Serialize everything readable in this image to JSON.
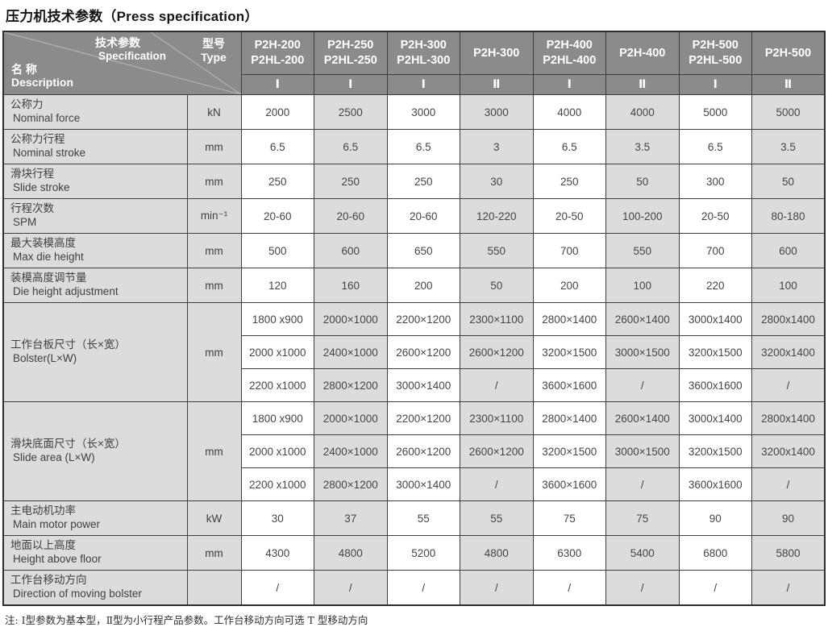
{
  "title": "压力机技术参数（Press specification）",
  "header": {
    "corner": {
      "spec_zh": "技术参数",
      "spec_en": "Specification",
      "type_zh": "型号",
      "type_en": "Type",
      "desc_zh": "名 称",
      "desc_en": "Description"
    },
    "models": [
      [
        "P2H-200",
        "P2HL-200"
      ],
      [
        "P2H-250",
        "P2HL-250"
      ],
      [
        "P2H-300",
        "P2HL-300"
      ],
      [
        "P2H-300"
      ],
      [
        "P2H-400",
        "P2HL-400"
      ],
      [
        "P2H-400"
      ],
      [
        "P2H-500",
        "P2HL-500"
      ],
      [
        "P2H-500"
      ]
    ],
    "types": [
      "Ⅰ",
      "Ⅰ",
      "Ⅰ",
      "Ⅱ",
      "Ⅰ",
      "Ⅱ",
      "Ⅰ",
      "Ⅱ"
    ]
  },
  "rows": [
    {
      "label_zh": "公称力",
      "label_en": "Nominal force",
      "unit": "kN",
      "values": [
        "2000",
        "2500",
        "3000",
        "3000",
        "4000",
        "4000",
        "5000",
        "5000"
      ]
    },
    {
      "label_zh": "公称力行程",
      "label_en": "Nominal stroke",
      "unit": "mm",
      "values": [
        "6.5",
        "6.5",
        "6.5",
        "3",
        "6.5",
        "3.5",
        "6.5",
        "3.5"
      ]
    },
    {
      "label_zh": "滑块行程",
      "label_en": "Slide stroke",
      "unit": "mm",
      "values": [
        "250",
        "250",
        "250",
        "30",
        "250",
        "50",
        "300",
        "50"
      ]
    },
    {
      "label_zh": "行程次数",
      "label_en": "SPM",
      "unit": "min⁻¹",
      "values": [
        "20-60",
        "20-60",
        "20-60",
        "120-220",
        "20-50",
        "100-200",
        "20-50",
        "80-180"
      ]
    },
    {
      "label_zh": "最大装模高度",
      "label_en": "Max die height",
      "unit": "mm",
      "values": [
        "500",
        "600",
        "650",
        "550",
        "700",
        "550",
        "700",
        "600"
      ]
    },
    {
      "label_zh": "装模高度调节量",
      "label_en": "Die height adjustment",
      "unit": "mm",
      "values": [
        "120",
        "160",
        "200",
        "50",
        "200",
        "100",
        "220",
        "100"
      ]
    },
    {
      "label_zh": "工作台板尺寸（长×宽）",
      "label_en": "Bolster(L×W)",
      "unit": "mm",
      "multi": [
        [
          "1800 x900",
          "2000×1000",
          "2200×1200",
          "2300×1100",
          "2800×1400",
          "2600×1400",
          "3000x1400",
          "2800x1400"
        ],
        [
          "2000 x1000",
          "2400×1000",
          "2600×1200",
          "2600×1200",
          "3200×1500",
          "3000×1500",
          "3200x1500",
          "3200x1400"
        ],
        [
          "2200 x1000",
          "2800×1200",
          "3000×1400",
          "/",
          "3600×1600",
          "/",
          "3600x1600",
          "/"
        ]
      ]
    },
    {
      "label_zh": "滑块底面尺寸（长×宽）",
      "label_en": "Slide area (L×W)",
      "unit": "mm",
      "multi": [
        [
          "1800 x900",
          "2000×1000",
          "2200×1200",
          "2300×1100",
          "2800×1400",
          "2600×1400",
          "3000x1400",
          "2800x1400"
        ],
        [
          "2000 x1000",
          "2400×1000",
          "2600×1200",
          "2600×1200",
          "3200×1500",
          "3000×1500",
          "3200x1500",
          "3200x1400"
        ],
        [
          "2200 x1000",
          "2800×1200",
          "3000×1400",
          "/",
          "3600×1600",
          "/",
          "3600x1600",
          "/"
        ]
      ]
    },
    {
      "label_zh": "主电动机功率",
      "label_en": "Main motor power",
      "unit": "kW",
      "values": [
        "30",
        "37",
        "55",
        "55",
        "75",
        "75",
        "90",
        "90"
      ]
    },
    {
      "label_zh": "地面以上高度",
      "label_en": "Height above floor",
      "unit": "mm",
      "values": [
        "4300",
        "4800",
        "5200",
        "4800",
        "6300",
        "5400",
        "6800",
        "5800"
      ]
    },
    {
      "label_zh": "工作台移动方向",
      "label_en": "Direction of moving bolster",
      "unit": "",
      "values": [
        "/",
        "/",
        "/",
        "/",
        "/",
        "/",
        "/",
        "/"
      ]
    }
  ],
  "footnote": "注: Ⅰ型参数为基本型，Ⅱ型为小行程产品参数。工作台移动方向可选 T 型移动方向",
  "colors": {
    "header_bg": "#8b8b8b",
    "header_text": "#ffffff",
    "cell_shaded": "#dcdcdc",
    "cell_white": "#ffffff",
    "border": "#3e3e3e",
    "body_text": "#454545"
  }
}
